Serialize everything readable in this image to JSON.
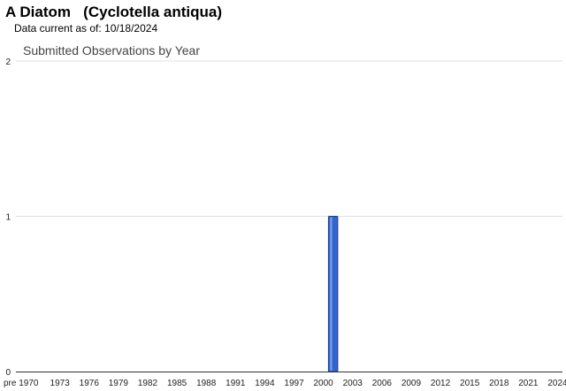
{
  "header": {
    "common_name": "A Diatom",
    "scientific_name": "(Cyclotella antiqua)",
    "currency_label": "Data current as of:",
    "currency_date": "10/18/2024"
  },
  "chart_data": {
    "type": "bar",
    "title": "Submitted Observations by Year",
    "xlabel": "",
    "ylabel": "",
    "ylim": [
      0,
      2
    ],
    "yticks": [
      0,
      1,
      2
    ],
    "xtick_labels": [
      "pre 1970",
      "1973",
      "1976",
      "1979",
      "1982",
      "1985",
      "1988",
      "1991",
      "1994",
      "1997",
      "2000",
      "2003",
      "2006",
      "2009",
      "2012",
      "2015",
      "2018",
      "2021",
      "2024"
    ],
    "categories": [
      "pre 1970",
      "1970",
      "1971",
      "1972",
      "1973",
      "1974",
      "1975",
      "1976",
      "1977",
      "1978",
      "1979",
      "1980",
      "1981",
      "1982",
      "1983",
      "1984",
      "1985",
      "1986",
      "1987",
      "1988",
      "1989",
      "1990",
      "1991",
      "1992",
      "1993",
      "1994",
      "1995",
      "1996",
      "1997",
      "1998",
      "1999",
      "2000",
      "2001",
      "2002",
      "2003",
      "2004",
      "2005",
      "2006",
      "2007",
      "2008",
      "2009",
      "2010",
      "2011",
      "2012",
      "2013",
      "2014",
      "2015",
      "2016",
      "2017",
      "2018",
      "2019",
      "2020",
      "2021",
      "2022",
      "2023",
      "2024"
    ],
    "values": [
      0,
      0,
      0,
      0,
      0,
      0,
      0,
      0,
      0,
      0,
      0,
      0,
      0,
      0,
      0,
      0,
      0,
      0,
      0,
      0,
      0,
      0,
      0,
      0,
      0,
      0,
      0,
      0,
      0,
      0,
      0,
      0,
      1,
      0,
      0,
      0,
      0,
      0,
      0,
      0,
      0,
      0,
      0,
      0,
      0,
      0,
      0,
      0,
      0,
      0,
      0,
      0,
      0,
      0,
      0,
      0
    ],
    "bar_color": "#3366cc",
    "bar_edge_color": "#1a3d99",
    "grid": true,
    "legend": "none"
  }
}
